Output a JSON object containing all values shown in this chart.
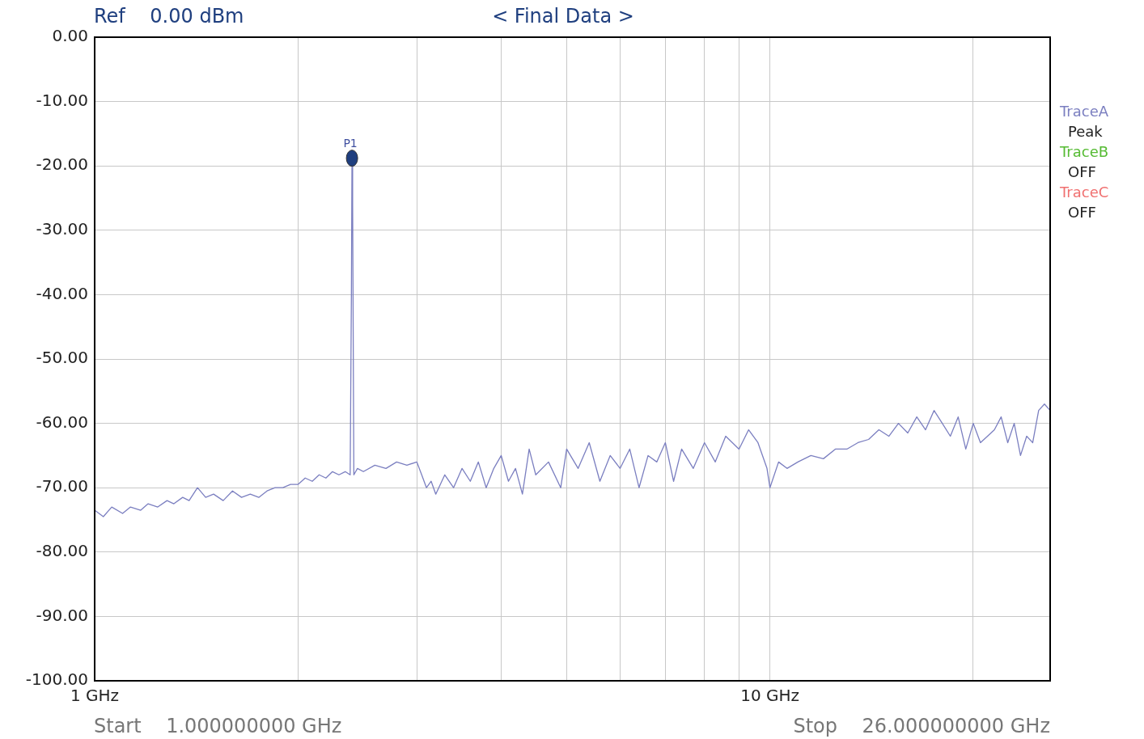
{
  "chart_data": {
    "type": "line",
    "title": "< Final Data >",
    "annotations": [
      "Ref    0.00 dBm",
      "Peak",
      "OFF",
      "OFF",
      "Start    1.000000000 GHz",
      "Stop    26.000000000 GHz",
      {
        "text": "P1",
        "x": 2.405,
        "y": -18.8
      }
    ],
    "series": [
      {
        "name": "TraceA",
        "color": "#7b7fc0",
        "x": [
          1,
          1.03,
          1.06,
          1.1,
          1.13,
          1.17,
          1.2,
          1.24,
          1.28,
          1.31,
          1.35,
          1.38,
          1.42,
          1.46,
          1.5,
          1.55,
          1.6,
          1.65,
          1.7,
          1.75,
          1.8,
          1.85,
          1.9,
          1.95,
          2,
          2.05,
          2.1,
          2.15,
          2.2,
          2.25,
          2.3,
          2.35,
          2.39,
          2.4,
          2.405,
          2.41,
          2.415,
          2.42,
          2.45,
          2.5,
          2.6,
          2.7,
          2.8,
          2.9,
          3,
          3.05,
          3.1,
          3.15,
          3.2,
          3.3,
          3.4,
          3.5,
          3.6,
          3.7,
          3.8,
          3.9,
          4,
          4.1,
          4.2,
          4.3,
          4.4,
          4.5,
          4.7,
          4.9,
          5,
          5.2,
          5.4,
          5.6,
          5.8,
          6,
          6.2,
          6.4,
          6.6,
          6.8,
          7,
          7.2,
          7.4,
          7.7,
          8,
          8.3,
          8.6,
          9,
          9.3,
          9.6,
          9.9,
          10,
          10.3,
          10.6,
          11,
          11.5,
          12,
          12.5,
          13,
          13.5,
          14,
          14.5,
          15,
          15.5,
          16,
          16.5,
          17,
          17.5,
          18,
          18.5,
          19,
          19.5,
          20,
          20.5,
          21,
          21.5,
          22,
          22.5,
          23,
          23.5,
          24,
          24.5,
          25,
          25.5,
          26
        ],
        "values": [
          -73.5,
          -74.5,
          -73,
          -74,
          -73,
          -73.5,
          -72.5,
          -73,
          -72,
          -72.5,
          -71.5,
          -72,
          -70,
          -71.5,
          -71,
          -72,
          -70.5,
          -71.5,
          -71,
          -71.5,
          -70.5,
          -70,
          -70,
          -69.5,
          -69.5,
          -68.5,
          -69,
          -68,
          -68.5,
          -67.5,
          -68,
          -67.5,
          -68,
          -40,
          -18.8,
          -26,
          -47,
          -68,
          -67,
          -67.5,
          -66.5,
          -67,
          -66,
          -66.5,
          -66,
          -68,
          -70,
          -69,
          -71,
          -68,
          -70,
          -67,
          -69,
          -66,
          -70,
          -67,
          -65,
          -69,
          -67,
          -71,
          -64,
          -68,
          -66,
          -70,
          -64,
          -67,
          -63,
          -69,
          -65,
          -67,
          -64,
          -70,
          -65,
          -66,
          -63,
          -69,
          -64,
          -67,
          -63,
          -66,
          -62,
          -64,
          -61,
          -63,
          -67,
          -70,
          -66,
          -67,
          -66,
          -65,
          -65.5,
          -64,
          -64,
          -63,
          -62.5,
          -61,
          -62,
          -60,
          -61.5,
          -59,
          -61,
          -58,
          -60,
          -62,
          -59,
          -64,
          -60,
          -63,
          -62,
          -61,
          -59,
          -63,
          -60,
          -65,
          -62,
          -63,
          -58,
          -57,
          -58
        ]
      },
      {
        "name": "TraceB",
        "color": "#55bb33"
      },
      {
        "name": "TraceC",
        "color": "#f07070"
      }
    ],
    "xlim": [
      1,
      26
    ],
    "ylim": [
      -100,
      0
    ],
    "log": "x",
    "xticks": [
      {
        "value": 1,
        "label": "1 GHz"
      },
      {
        "value": 2,
        "label": null
      },
      {
        "value": 3,
        "label": null
      },
      {
        "value": 4,
        "label": null
      },
      {
        "value": 5,
        "label": null
      },
      {
        "value": 6,
        "label": null
      },
      {
        "value": 7,
        "label": null
      },
      {
        "value": 8,
        "label": null
      },
      {
        "value": 9,
        "label": null
      },
      {
        "value": 10,
        "label": "10 GHz"
      },
      {
        "value": 20,
        "label": null
      }
    ],
    "yticks": [
      {
        "value": 0,
        "label": "0.00"
      },
      {
        "value": -10,
        "label": "-10.00"
      },
      {
        "value": -20,
        "label": "-20.00"
      },
      {
        "value": -30,
        "label": "-30.00"
      },
      {
        "value": -40,
        "label": "-40.00"
      },
      {
        "value": -50,
        "label": "-50.00"
      },
      {
        "value": -60,
        "label": "-60.00"
      },
      {
        "value": -70,
        "label": "-70.00"
      },
      {
        "value": -80,
        "label": "-80.00"
      },
      {
        "value": -90,
        "label": "-90.00"
      },
      {
        "value": -100,
        "label": "-100.00"
      }
    ],
    "grid": true,
    "legend": "right",
    "marker": "none",
    "line_style": "solid"
  }
}
